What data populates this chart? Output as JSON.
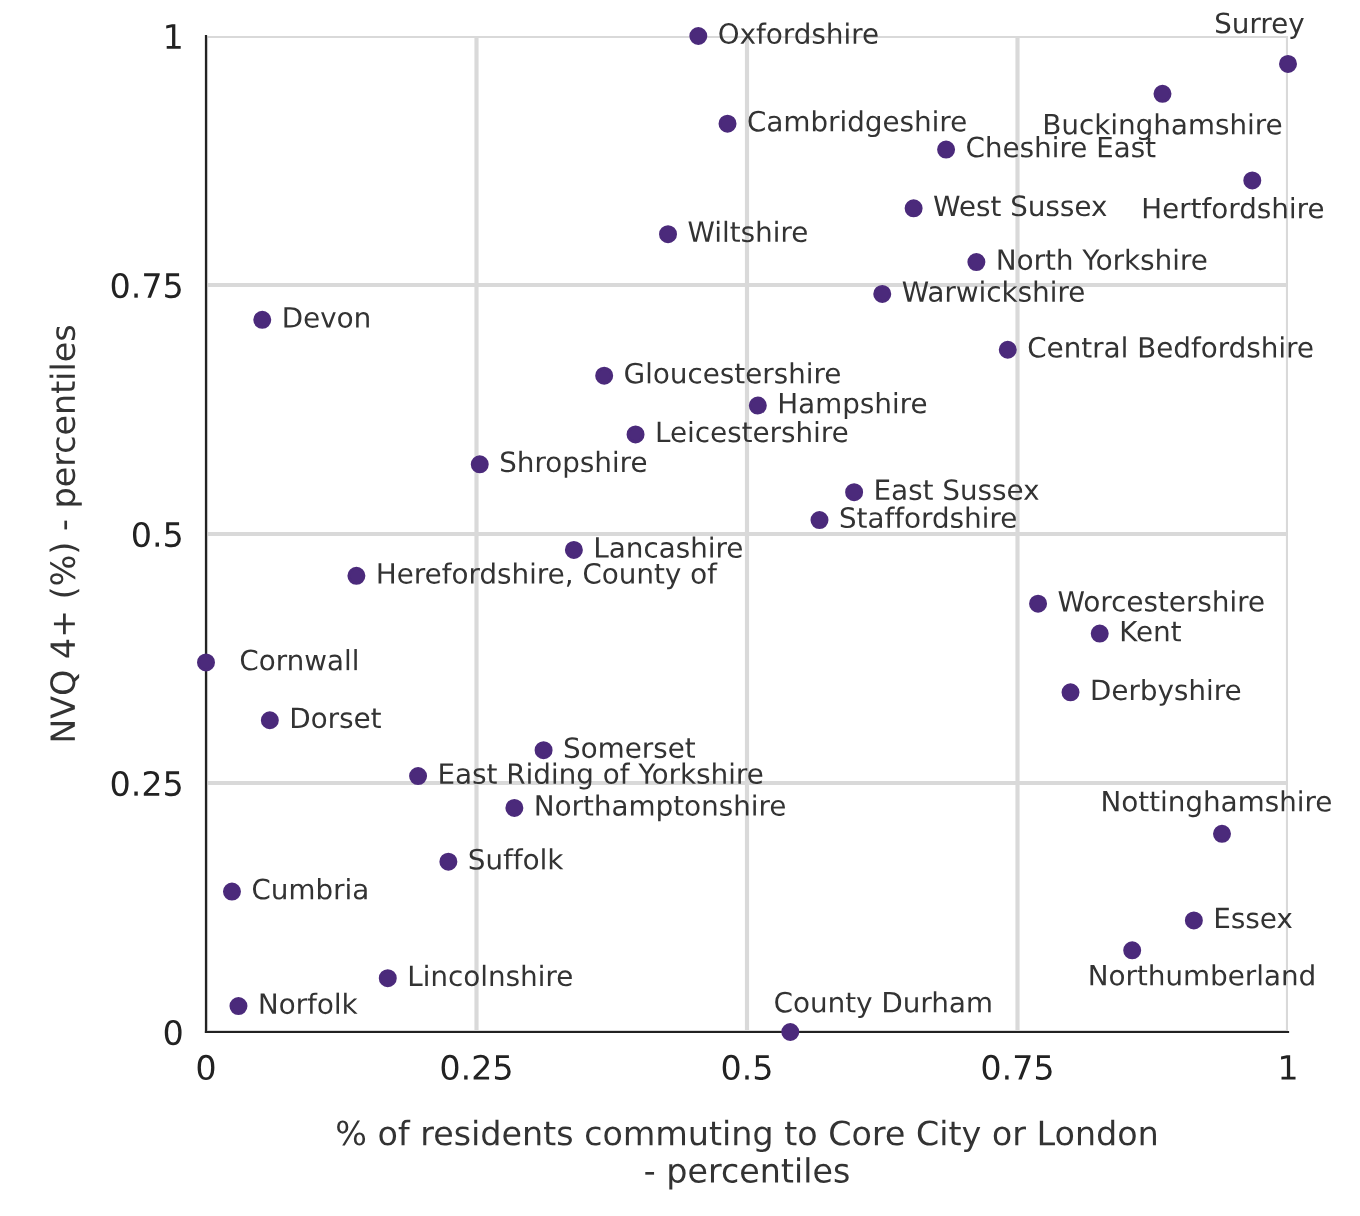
{
  "chart_data": {
    "type": "scatter",
    "xlabel": "% of residents commuting to Core City or London\n- percentiles",
    "ylabel": "NVQ 4+ (%) - percentiles",
    "series": [
      {
        "color": "#4b2a7b",
        "x": [
          0.455,
          1.0,
          0.884,
          0.482,
          0.684,
          0.967,
          0.654,
          0.427,
          0.712,
          0.625,
          0.052,
          0.741,
          0.368,
          0.51,
          0.397,
          0.253,
          0.599,
          0.567,
          0.34,
          0.139,
          0.769,
          0.826,
          0.0,
          0.059,
          0.799,
          0.312,
          0.196,
          0.285,
          0.224,
          0.939,
          0.024,
          0.913,
          0.168,
          0.856,
          0.03,
          0.54
        ],
        "values": [
          1.0,
          0.972,
          0.942,
          0.912,
          0.886,
          0.855,
          0.827,
          0.801,
          0.773,
          0.741,
          0.715,
          0.685,
          0.659,
          0.629,
          0.6,
          0.57,
          0.542,
          0.514,
          0.484,
          0.458,
          0.43,
          0.4,
          0.371,
          0.313,
          0.341,
          0.283,
          0.257,
          0.225,
          0.171,
          0.199,
          0.141,
          0.112,
          0.054,
          0.082,
          0.026,
          0.0
        ]
      }
    ],
    "annotations": [
      {
        "text": "Oxfordshire",
        "x": 0.455,
        "y": 1.0
      },
      {
        "text": "Surrey",
        "x": 1.0,
        "y": 0.972
      },
      {
        "text": "Buckinghamshire",
        "x": 0.884,
        "y": 0.942
      },
      {
        "text": "Cambridgeshire",
        "x": 0.482,
        "y": 0.912
      },
      {
        "text": "Cheshire East",
        "x": 0.684,
        "y": 0.886
      },
      {
        "text": "Hertfordshire",
        "x": 0.967,
        "y": 0.855
      },
      {
        "text": "West Sussex",
        "x": 0.654,
        "y": 0.827
      },
      {
        "text": "Wiltshire",
        "x": 0.427,
        "y": 0.801
      },
      {
        "text": "North Yorkshire",
        "x": 0.712,
        "y": 0.773
      },
      {
        "text": "Warwickshire",
        "x": 0.625,
        "y": 0.741
      },
      {
        "text": "Devon",
        "x": 0.052,
        "y": 0.715
      },
      {
        "text": "Central Bedfordshire",
        "x": 0.741,
        "y": 0.685
      },
      {
        "text": "Gloucestershire",
        "x": 0.368,
        "y": 0.659
      },
      {
        "text": "Hampshire",
        "x": 0.51,
        "y": 0.629
      },
      {
        "text": "Leicestershire",
        "x": 0.397,
        "y": 0.6
      },
      {
        "text": "Shropshire",
        "x": 0.253,
        "y": 0.57
      },
      {
        "text": "East Sussex",
        "x": 0.599,
        "y": 0.542
      },
      {
        "text": "Staffordshire",
        "x": 0.567,
        "y": 0.514
      },
      {
        "text": "Lancashire",
        "x": 0.34,
        "y": 0.484
      },
      {
        "text": "Herefordshire, County of",
        "x": 0.139,
        "y": 0.458
      },
      {
        "text": "Worcestershire",
        "x": 0.769,
        "y": 0.43
      },
      {
        "text": "Kent",
        "x": 0.826,
        "y": 0.4
      },
      {
        "text": "Cornwall",
        "x": 0.0,
        "y": 0.371
      },
      {
        "text": "Dorset",
        "x": 0.059,
        "y": 0.313
      },
      {
        "text": "Derbyshire",
        "x": 0.799,
        "y": 0.341
      },
      {
        "text": "Somerset",
        "x": 0.312,
        "y": 0.283
      },
      {
        "text": "East Riding of Yorkshire",
        "x": 0.196,
        "y": 0.257
      },
      {
        "text": "Northamptonshire",
        "x": 0.285,
        "y": 0.225
      },
      {
        "text": "Suffolk",
        "x": 0.224,
        "y": 0.171
      },
      {
        "text": "Nottinghamshire",
        "x": 0.939,
        "y": 0.199
      },
      {
        "text": "Cumbria",
        "x": 0.024,
        "y": 0.141
      },
      {
        "text": "Essex",
        "x": 0.913,
        "y": 0.112
      },
      {
        "text": "Lincolnshire",
        "x": 0.168,
        "y": 0.054
      },
      {
        "text": "Northumberland",
        "x": 0.856,
        "y": 0.082
      },
      {
        "text": "Norfolk",
        "x": 0.03,
        "y": 0.026
      },
      {
        "text": "County Durham",
        "x": 0.54,
        "y": 0.0
      }
    ],
    "xlim": [
      0,
      1
    ],
    "ylim": [
      0,
      1
    ],
    "xticks": [
      0,
      0.25,
      0.5,
      0.75,
      1
    ],
    "yticks": [
      0,
      0.25,
      0.5,
      0.75,
      1
    ],
    "grid": true,
    "marker": "circle"
  }
}
